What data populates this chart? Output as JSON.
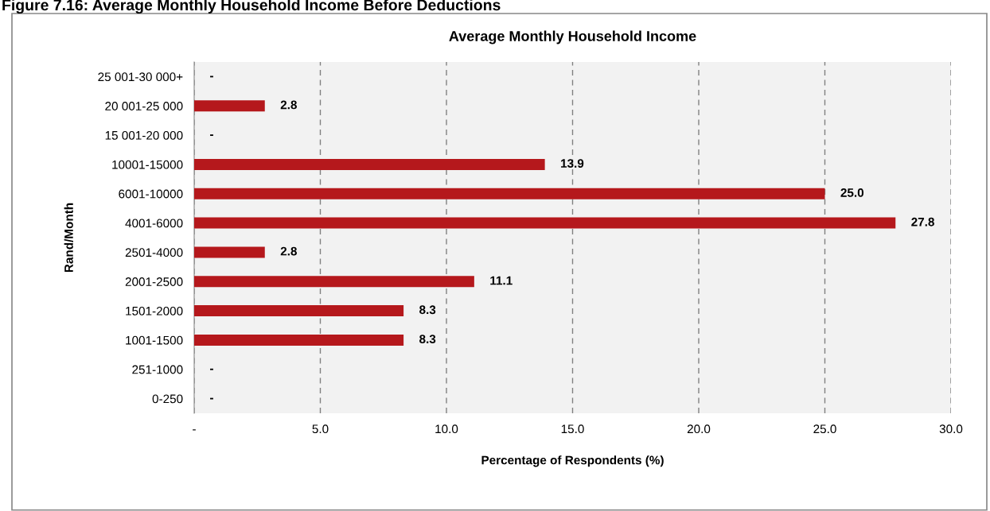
{
  "chart_data": {
    "type": "bar",
    "orientation": "horizontal",
    "title": "Average Monthly Household Income",
    "subtitle": "Figure 7.16: Average Monthly Household Income Before Deductions",
    "xlabel": "Percentage of Respondents (%)",
    "ylabel": "Rand/Month",
    "categories": [
      "25 001-30 000+",
      "20 001-25 000",
      "15 001-20 000",
      "10001-15000",
      "6001-10000",
      "4001-6000",
      "2501-4000",
      "2001-2500",
      "1501-2000",
      "1001-1500",
      "251-1000",
      "0-250"
    ],
    "values": [
      0,
      2.8,
      0,
      13.9,
      25.0,
      27.8,
      2.8,
      11.1,
      8.3,
      8.3,
      0,
      0
    ],
    "value_labels": [
      "-",
      "2.8",
      "-",
      "13.9",
      "25.0",
      "27.8",
      "2.8",
      "11.1",
      "8.3",
      "8.3",
      "-",
      "-"
    ],
    "color": "#b5181c",
    "xlim": [
      0,
      30
    ],
    "xticks": [
      {
        "value": 0,
        "label": "-"
      },
      {
        "value": 5,
        "label": "5.0"
      },
      {
        "value": 10,
        "label": "10.0"
      },
      {
        "value": 15,
        "label": "15.0"
      },
      {
        "value": 20,
        "label": "20.0"
      },
      {
        "value": 25,
        "label": "25.0"
      },
      {
        "value": 30,
        "label": "30.0"
      }
    ],
    "grid": "x",
    "legend": false
  }
}
